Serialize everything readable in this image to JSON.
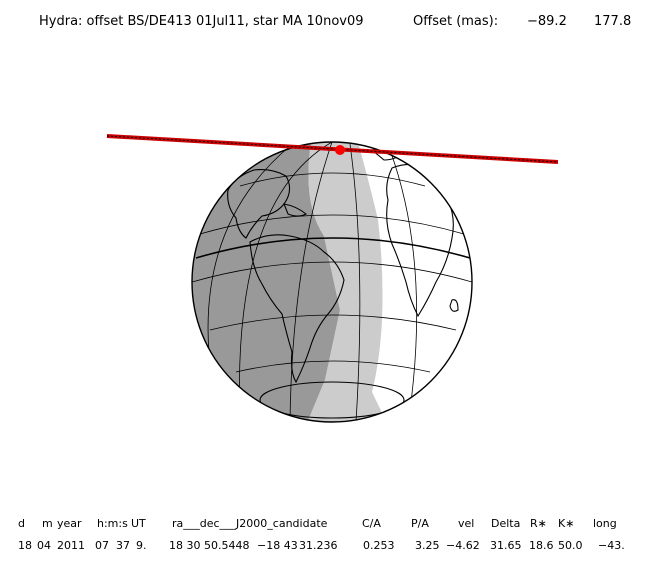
{
  "header": {
    "title": "Hydra: offset BS/DE413 01Jul11, star MA 10nov09",
    "offset_label": "Offset (mas):",
    "offset_ra": "−89.2",
    "offset_dec": "177.8"
  },
  "colors": {
    "night_shade": "#999999",
    "twilight_shade": "#cccccc",
    "day_side": "#ffffff",
    "shadow_path": "#cc0000",
    "center_point": "#ff0000",
    "outline": "#000000"
  },
  "table": {
    "headers": [
      "d",
      "m",
      "year",
      "h:m:s",
      "UT",
      "ra___dec___J2000_candidate",
      "C/A",
      "P/A",
      "vel",
      "Delta",
      "R∗",
      "K∗",
      "long"
    ],
    "values": [
      "18",
      "04",
      "2011",
      "07",
      "37",
      "9.",
      "18 30 50.5448",
      "−18 43",
      "31.236",
      "0.253",
      "3.25",
      "−4.62",
      "31.65",
      "18.6",
      "50.0",
      "−43."
    ]
  }
}
